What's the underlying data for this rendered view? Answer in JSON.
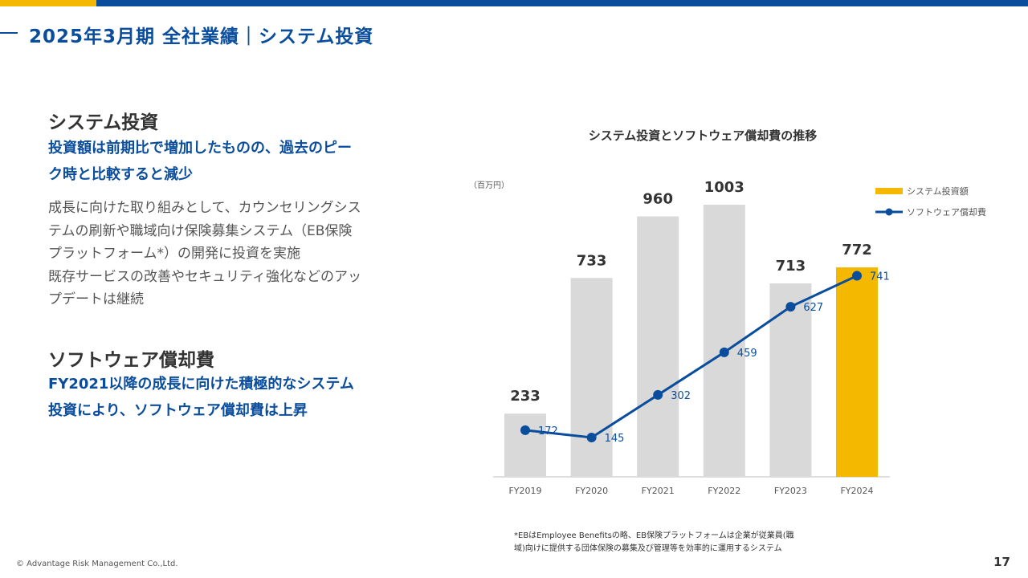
{
  "header": {
    "title": "2025年3月期 全社業績｜システム投資"
  },
  "section1": {
    "heading": "システム投資",
    "sub_lines": [
      "投資額は前期比で増加したものの、過去のピー",
      "ク時と比較すると減少"
    ],
    "body_lines": [
      "成長に向けた取り組みとして、カウンセリングシス",
      "テムの刷新や職域向け保険募集システム（EB保険",
      "プラットフォーム*）の開発に投資を実施",
      "既存サービスの改善やセキュリティ強化などのアッ",
      "プデートは継続"
    ]
  },
  "section2": {
    "heading": "ソフトウェア償却費",
    "sub_lines": [
      "FY2021以降の成長に向けた積極的なシステム",
      "投資により、ソフトウェア償却費は上昇"
    ]
  },
  "chart_data": {
    "type": "bar",
    "title": "システム投資とソフトウェア償却費の推移",
    "unit_label": "（百万円）",
    "categories": [
      "FY2019",
      "FY2020",
      "FY2021",
      "FY2022",
      "FY2023",
      "FY2024"
    ],
    "series": [
      {
        "name": "システム投資額",
        "type": "bar",
        "values": [
          233,
          733,
          960,
          1003,
          713,
          772
        ],
        "color": "#d9d9d9",
        "highlight_color": "#f5b800",
        "highlight_index": 5
      },
      {
        "name": "ソフトウェア償却費",
        "type": "line",
        "values": [
          172,
          145,
          302,
          459,
          627,
          741
        ],
        "color": "#0a4d9c"
      }
    ],
    "ylim": [
      0,
      1050
    ],
    "grid": false,
    "legend_position": "top-right"
  },
  "footnote": {
    "lines": [
      "*EBはEmployee Benefitsの略、EB保険プラットフォームは企業が従業員(職",
      "域)向けに提供する団体保険の募集及び管理等を効率的に運用するシステム"
    ]
  },
  "footer": {
    "copyright": "© Advantage Risk Management Co.,Ltd.",
    "page_number": "17"
  }
}
